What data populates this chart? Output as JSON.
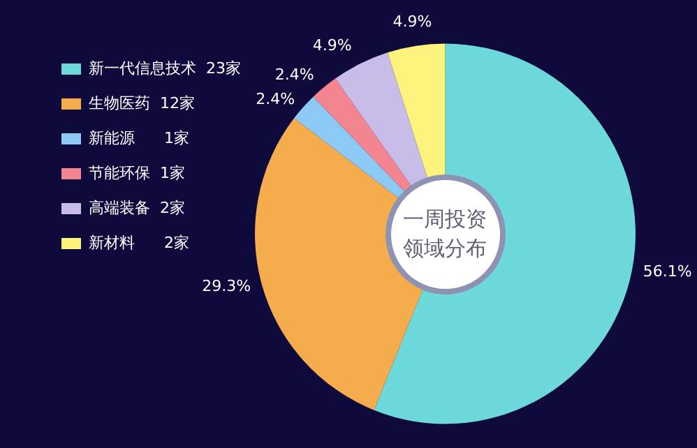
{
  "chart_data": {
    "type": "donut",
    "title": "一周投资领域分布",
    "categories": [
      "新一代信息技术  23家",
      "生物医药  12家",
      "新能源      1家",
      "节能环保  1家",
      "高端装备  2家",
      "新材料      2家"
    ],
    "values": [
      56.1,
      29.3,
      2.4,
      2.4,
      4.9,
      4.9
    ],
    "colors": [
      "#6dd9da",
      "#f5ac4c",
      "#8ccaf5",
      "#f2858f",
      "#c8bde8",
      "#fdf27c"
    ],
    "value_labels": [
      "56.1%",
      "29.3%",
      "2.4%",
      "2.4%",
      "4.9%",
      "4.9%"
    ],
    "legend": "left"
  }
}
